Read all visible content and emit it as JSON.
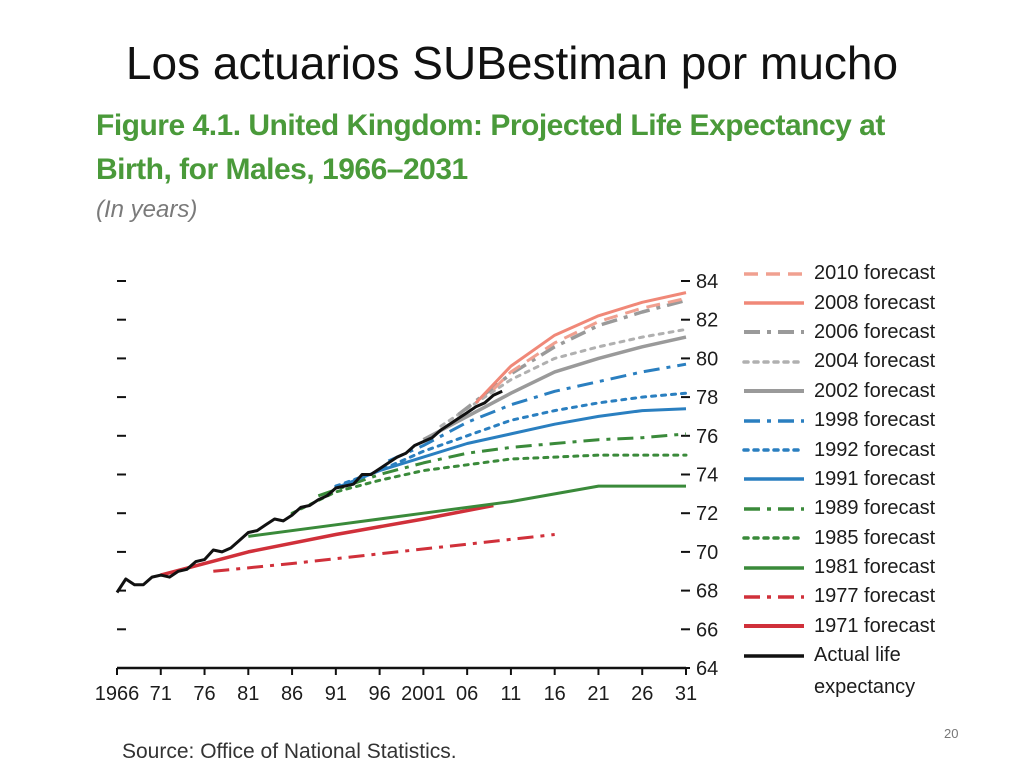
{
  "slide": {
    "title": "Los actuarios SUBestiman por mucho",
    "page_number": "20"
  },
  "figure": {
    "title": "Figure 4.1. United Kingdom: Projected Life Expectancy at Birth, for Males, 1966–2031",
    "subtitle": "(In years)",
    "source": "Source: Office of National Statistics."
  },
  "chart_data": {
    "type": "line",
    "xlim": [
      1966,
      2031
    ],
    "ylim": [
      64,
      84
    ],
    "x_ticks": [
      1966,
      1971,
      1976,
      1981,
      1986,
      1991,
      1996,
      2001,
      2006,
      2011,
      2016,
      2021,
      2026,
      2031
    ],
    "x_tick_labels": [
      "1966",
      "71",
      "76",
      "81",
      "86",
      "91",
      "96",
      "2001",
      "06",
      "11",
      "16",
      "21",
      "26",
      "31"
    ],
    "y_ticks": [
      64,
      66,
      68,
      70,
      72,
      74,
      76,
      78,
      80,
      82,
      84
    ],
    "y_tick_labels": [
      "64",
      "66",
      "68",
      "70",
      "72",
      "74",
      "76",
      "78",
      "80",
      "82",
      "84"
    ],
    "legend_position": "right",
    "series": [
      {
        "name": "2010 forecast",
        "color": "#f0a090",
        "style": "dash",
        "width": 3,
        "x": [
          2009,
          2011,
          2016,
          2021,
          2026,
          2031
        ],
        "y": [
          78.4,
          79.3,
          80.8,
          81.9,
          82.6,
          83.1
        ]
      },
      {
        "name": "2008 forecast",
        "color": "#f08878",
        "style": "solid",
        "width": 3,
        "x": [
          2007,
          2011,
          2016,
          2021,
          2026,
          2031
        ],
        "y": [
          77.7,
          79.6,
          81.2,
          82.2,
          82.9,
          83.4
        ]
      },
      {
        "name": "2006 forecast",
        "color": "#9a9a9a",
        "style": "dashdot",
        "width": 3.5,
        "x": [
          2005,
          2011,
          2016,
          2021,
          2026,
          2031
        ],
        "y": [
          77.1,
          79.2,
          80.6,
          81.7,
          82.4,
          83.0
        ]
      },
      {
        "name": "2004 forecast",
        "color": "#b0b0b0",
        "style": "dot",
        "width": 3,
        "x": [
          2003,
          2011,
          2016,
          2021,
          2026,
          2031
        ],
        "y": [
          76.5,
          78.9,
          80.0,
          80.6,
          81.1,
          81.5
        ]
      },
      {
        "name": "2002 forecast",
        "color": "#9a9a9a",
        "style": "solid",
        "width": 3.5,
        "x": [
          2001,
          2006,
          2011,
          2016,
          2021,
          2026,
          2031
        ],
        "y": [
          75.8,
          77.0,
          78.2,
          79.3,
          80.0,
          80.6,
          81.1
        ]
      },
      {
        "name": "1998 forecast",
        "color": "#2a7fc0",
        "style": "dashdot",
        "width": 3,
        "x": [
          1997,
          2001,
          2006,
          2011,
          2016,
          2021,
          2026,
          2031
        ],
        "y": [
          74.7,
          75.5,
          76.7,
          77.6,
          78.3,
          78.8,
          79.3,
          79.7
        ]
      },
      {
        "name": "1992 forecast",
        "color": "#2a7fc0",
        "style": "dot",
        "width": 3,
        "x": [
          1991,
          1996,
          2001,
          2006,
          2011,
          2016,
          2021,
          2026,
          2031
        ],
        "y": [
          73.4,
          74.2,
          75.2,
          76.0,
          76.8,
          77.3,
          77.7,
          78.0,
          78.2
        ]
      },
      {
        "name": "1991 forecast",
        "color": "#2a7fc0",
        "style": "solid",
        "width": 3,
        "x": [
          1991,
          1996,
          2001,
          2006,
          2011,
          2016,
          2021,
          2026,
          2031
        ],
        "y": [
          73.3,
          74.2,
          74.9,
          75.6,
          76.1,
          76.6,
          77.0,
          77.3,
          77.4
        ]
      },
      {
        "name": "1989 forecast",
        "color": "#3a8a3a",
        "style": "dashdot",
        "width": 3,
        "x": [
          1989,
          1996,
          2001,
          2006,
          2011,
          2016,
          2021,
          2026,
          2031
        ],
        "y": [
          72.9,
          74.0,
          74.6,
          75.1,
          75.4,
          75.6,
          75.8,
          75.9,
          76.1
        ]
      },
      {
        "name": "1985 forecast",
        "color": "#3a8a3a",
        "style": "dot",
        "width": 3,
        "x": [
          1986,
          1991,
          1996,
          2001,
          2006,
          2011,
          2016,
          2021,
          2026,
          2031
        ],
        "y": [
          72.0,
          73.1,
          73.7,
          74.2,
          74.5,
          74.8,
          74.9,
          75.0,
          75.0,
          75.0
        ]
      },
      {
        "name": "1981 forecast",
        "color": "#3a8a3a",
        "style": "solid",
        "width": 3,
        "x": [
          1981,
          1991,
          2001,
          2011,
          2021,
          2031
        ],
        "y": [
          70.8,
          71.4,
          72.0,
          72.6,
          73.4,
          73.4
        ]
      },
      {
        "name": "1977 forecast",
        "color": "#d0303a",
        "style": "dashdot",
        "width": 3,
        "x": [
          1977,
          1986,
          1996,
          2006,
          2016
        ],
        "y": [
          69.0,
          69.4,
          69.9,
          70.4,
          70.9
        ]
      },
      {
        "name": "1971 forecast",
        "color": "#d0303a",
        "style": "solid",
        "width": 3.5,
        "x": [
          1971,
          1981,
          1991,
          2001,
          2009
        ],
        "y": [
          68.8,
          70.0,
          70.9,
          71.7,
          72.4
        ]
      },
      {
        "name": "Actual life expectancy",
        "color": "#111111",
        "style": "solid",
        "width": 3,
        "x": [
          1966,
          1967,
          1968,
          1969,
          1970,
          1971,
          1972,
          1973,
          1974,
          1975,
          1976,
          1977,
          1978,
          1979,
          1980,
          1981,
          1982,
          1983,
          1984,
          1985,
          1986,
          1987,
          1988,
          1989,
          1990,
          1991,
          1992,
          1993,
          1994,
          1995,
          1996,
          1997,
          1998,
          1999,
          2000,
          2001,
          2002,
          2003,
          2004,
          2005,
          2006,
          2007,
          2008,
          2009,
          2010
        ],
        "y": [
          67.9,
          68.6,
          68.3,
          68.3,
          68.7,
          68.8,
          68.7,
          69.0,
          69.1,
          69.5,
          69.6,
          70.1,
          70.0,
          70.2,
          70.6,
          71.0,
          71.1,
          71.4,
          71.7,
          71.6,
          71.9,
          72.3,
          72.4,
          72.7,
          72.9,
          73.3,
          73.4,
          73.5,
          74.0,
          74.0,
          74.3,
          74.6,
          74.9,
          75.1,
          75.5,
          75.7,
          75.9,
          76.3,
          76.6,
          76.9,
          77.2,
          77.5,
          77.7,
          78.1,
          78.3
        ]
      }
    ]
  },
  "legend": {
    "items": [
      {
        "label": "2010 forecast"
      },
      {
        "label": "2008 forecast"
      },
      {
        "label": "2006 forecast"
      },
      {
        "label": "2004 forecast"
      },
      {
        "label": "2002 forecast"
      },
      {
        "label": "1998 forecast"
      },
      {
        "label": "1992 forecast"
      },
      {
        "label": "1991 forecast"
      },
      {
        "label": "1989 forecast"
      },
      {
        "label": "1985 forecast"
      },
      {
        "label": "1981 forecast"
      },
      {
        "label": "1977 forecast"
      },
      {
        "label": "1971 forecast"
      },
      {
        "label": "Actual life expectancy"
      }
    ]
  }
}
